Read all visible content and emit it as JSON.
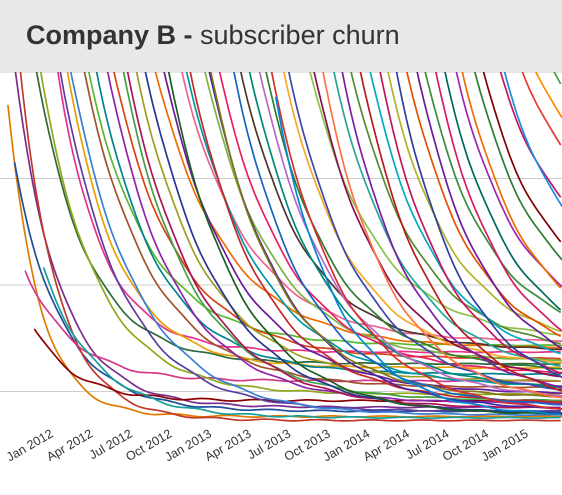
{
  "header": {
    "company": "Company B",
    "separator": " - ",
    "subtitle": "subscriber churn"
  },
  "colors": {
    "header_bg": "#e8e8e8",
    "grid": "#cccccc",
    "text": "#333333"
  },
  "chart_data": {
    "type": "line",
    "title": "Company B - subscriber churn",
    "xlabel": "",
    "ylabel": "",
    "grid": true,
    "legend": "none",
    "x_tick_labels": [
      "Jan 2012",
      "Apr 2012",
      "Jul 2012",
      "Oct 2012",
      "Jan 2013",
      "Apr 2013",
      "Jul 2013",
      "Oct 2013",
      "Jan 2014",
      "Apr 2014",
      "Jul 2014",
      "Oct 2014",
      "Jan 2015"
    ],
    "x_tick_values": [
      0,
      3,
      6,
      9,
      12,
      15,
      18,
      21,
      24,
      27,
      30,
      33,
      36
    ],
    "xlim": [
      -4.1,
      38.5
    ],
    "ylim": [
      0,
      270
    ],
    "series": [
      {
        "color": "#e07b00",
        "start": -3.5,
        "y0": 245,
        "yf": 8,
        "k": 0.42,
        "cliff": []
      },
      {
        "color": "#7b2d8e",
        "start": -3.2,
        "y0": 290,
        "yf": 15,
        "k": 0.3,
        "cliff": []
      },
      {
        "color": "#1f4e9c",
        "start": -3.0,
        "y0": 200,
        "yf": 12,
        "k": 0.28,
        "cliff": []
      },
      {
        "color": "#c0392b",
        "start": -2.6,
        "y0": 275,
        "yf": 5,
        "k": 0.35,
        "cliff": []
      },
      {
        "color": "#d13a8a",
        "start": -2.2,
        "y0": 120,
        "yf": 35,
        "k": 0.28,
        "cliff": []
      },
      {
        "color": "#2f6b3a",
        "start": -1.8,
        "y0": 300,
        "yf": 48,
        "k": 0.26,
        "cliff": []
      },
      {
        "color": "#8b0000",
        "start": -1.5,
        "y0": 75,
        "yf": 20,
        "k": 0.32,
        "cliff": []
      },
      {
        "color": "#8fa81c",
        "start": -1.2,
        "y0": 280,
        "yf": 25,
        "k": 0.24,
        "cliff": []
      },
      {
        "color": "#1a9e9a",
        "start": -0.8,
        "y0": 120,
        "yf": 7,
        "k": 0.25,
        "cliff": []
      },
      {
        "color": "#e5338a",
        "start": -0.4,
        "y0": 320,
        "yf": 57,
        "k": 0.3,
        "cliff": []
      },
      {
        "color": "#5b3fa0",
        "start": 0.0,
        "y0": 300,
        "yf": 12,
        "k": 0.22,
        "cliff": []
      },
      {
        "color": "#e8a000",
        "start": 0.4,
        "y0": 310,
        "yf": 45,
        "k": 0.26,
        "cliff": []
      },
      {
        "color": "#3a7fd5",
        "start": 0.9,
        "y0": 290,
        "yf": 9,
        "k": 0.2,
        "cliff": []
      },
      {
        "color": "#5ab82e",
        "start": 1.3,
        "y0": 340,
        "yf": 62,
        "k": 0.22,
        "cliff": []
      },
      {
        "color": "#a0522d",
        "start": 1.7,
        "y0": 300,
        "yf": 30,
        "k": 0.2,
        "cliff": []
      },
      {
        "color": "#00838f",
        "start": 2.2,
        "y0": 330,
        "yf": 40,
        "k": 0.22,
        "cliff": []
      },
      {
        "color": "#8e24aa",
        "start": 2.7,
        "y0": 350,
        "yf": 18,
        "k": 0.2,
        "cliff": []
      },
      {
        "color": "#d84315",
        "start": 3.2,
        "y0": 340,
        "yf": 52,
        "k": 0.21,
        "cliff": []
      },
      {
        "color": "#43a047",
        "start": 3.7,
        "y0": 360,
        "yf": 20,
        "k": 0.2,
        "cliff": []
      },
      {
        "color": "#ad1457",
        "start": 4.2,
        "y0": 345,
        "yf": 14,
        "k": 0.19,
        "cliff": []
      },
      {
        "color": "#9e9d24",
        "start": 4.8,
        "y0": 350,
        "yf": 35,
        "k": 0.2,
        "cliff": []
      },
      {
        "color": "#283593",
        "start": 5.3,
        "y0": 360,
        "yf": 10,
        "k": 0.18,
        "cliff": []
      },
      {
        "color": "#ef6c00",
        "start": 5.9,
        "y0": 355,
        "yf": 60,
        "k": 0.19,
        "cliff": []
      },
      {
        "color": "#6a1b9a",
        "start": 6.5,
        "y0": 365,
        "yf": 25,
        "k": 0.18,
        "cliff": []
      },
      {
        "color": "#1b5e20",
        "start": 7.1,
        "y0": 360,
        "yf": 9,
        "k": 0.19,
        "cliff": []
      },
      {
        "color": "#f06292",
        "start": 7.7,
        "y0": 370,
        "yf": 65,
        "k": 0.2,
        "cliff": []
      },
      {
        "color": "#0097a7",
        "start": 8.3,
        "y0": 360,
        "yf": 30,
        "k": 0.18,
        "cliff": []
      },
      {
        "color": "#c62828",
        "start": 8.9,
        "y0": 350,
        "yf": 18,
        "k": 0.19,
        "cliff": []
      },
      {
        "color": "#7cb342",
        "start": 9.5,
        "y0": 375,
        "yf": 50,
        "k": 0.2,
        "cliff": []
      },
      {
        "color": "#4527a0",
        "start": 10.1,
        "y0": 360,
        "yf": 12,
        "k": 0.18,
        "cliff": []
      },
      {
        "color": "#e91e63",
        "start": 10.7,
        "y0": 365,
        "yf": 40,
        "k": 0.19,
        "cliff": []
      },
      {
        "color": "#827717",
        "start": 11.3,
        "y0": 300,
        "yf": 22,
        "k": 0.2,
        "cliff": []
      },
      {
        "color": "#1565c0",
        "start": 11.9,
        "y0": 370,
        "yf": 15,
        "k": 0.19,
        "cliff": []
      },
      {
        "color": "#4e342e",
        "start": 12.5,
        "y0": 360,
        "yf": 58,
        "k": 0.21,
        "cliff": []
      },
      {
        "color": "#00897b",
        "start": 13.1,
        "y0": 365,
        "yf": 28,
        "k": 0.19,
        "cliff": []
      },
      {
        "color": "#ba68c8",
        "start": 13.7,
        "y0": 370,
        "yf": 20,
        "k": 0.18,
        "cliff": []
      },
      {
        "color": "#2e7d32",
        "start": 14.3,
        "y0": 365,
        "yf": 42,
        "k": 0.2,
        "cliff": []
      },
      {
        "color": "#d32f2f",
        "start": 14.9,
        "y0": 360,
        "yf": 10,
        "k": 0.19,
        "cliff": []
      },
      {
        "color": "#f9a825",
        "start": 15.5,
        "y0": 375,
        "yf": 46,
        "k": 0.2,
        "cliff": []
      },
      {
        "color": "#3949ab",
        "start": 16.1,
        "y0": 365,
        "yf": 24,
        "k": 0.19,
        "cliff": []
      },
      {
        "color": "#0288d1",
        "start": 16.8,
        "y0": 250,
        "yf": 8,
        "k": 0.22,
        "cliff": []
      },
      {
        "color": "#8bc34a",
        "start": 17.4,
        "y0": 370,
        "yf": 66,
        "k": 0.2,
        "cliff": []
      },
      {
        "color": "#880e4f",
        "start": 18.0,
        "y0": 360,
        "yf": 32,
        "k": 0.19,
        "cliff": []
      },
      {
        "color": "#ff7043",
        "start": 18.7,
        "y0": 370,
        "yf": 16,
        "k": 0.2,
        "cliff": []
      },
      {
        "color": "#26a69a",
        "start": 19.4,
        "y0": 365,
        "yf": 38,
        "k": 0.19,
        "cliff": []
      },
      {
        "color": "#7b1fa2",
        "start": 20.1,
        "y0": 375,
        "yf": 22,
        "k": 0.2,
        "cliff": []
      },
      {
        "color": "#558b2f",
        "start": 20.8,
        "y0": 360,
        "yf": 55,
        "k": 0.2,
        "cliff": []
      },
      {
        "color": "#b71c1c",
        "start": 21.5,
        "y0": 370,
        "yf": 14,
        "k": 0.19,
        "cliff": []
      },
      {
        "color": "#00acc1",
        "start": 22.2,
        "y0": 365,
        "yf": 44,
        "k": 0.2,
        "cliff": []
      },
      {
        "color": "#c2185b",
        "start": 22.9,
        "y0": 375,
        "yf": 26,
        "k": 0.2,
        "cliff": []
      },
      {
        "color": "#afb42b",
        "start": 23.6,
        "y0": 360,
        "yf": 60,
        "k": 0.21,
        "cliff": []
      },
      {
        "color": "#303f9f",
        "start": 24.3,
        "y0": 370,
        "yf": 18,
        "k": 0.2,
        "cliff": []
      },
      {
        "color": "#e65100",
        "start": 25.0,
        "y0": 365,
        "yf": 48,
        "k": 0.2,
        "cliff": []
      },
      {
        "color": "#6a1b9a",
        "start": 25.7,
        "y0": 375,
        "yf": 34,
        "k": 0.2,
        "cliff": []
      },
      {
        "color": "#388e3c",
        "start": 26.4,
        "y0": 360,
        "yf": 64,
        "k": 0.21,
        "cliff": []
      },
      {
        "color": "#d81b60",
        "start": 27.1,
        "y0": 370,
        "yf": 40,
        "k": 0.2,
        "cliff": []
      },
      {
        "color": "#00695c",
        "start": 27.8,
        "y0": 365,
        "yf": 52,
        "k": 0.2,
        "cliff": []
      },
      {
        "color": "#9c27b0",
        "start": 28.5,
        "y0": 375,
        "yf": 70,
        "k": 0.21,
        "cliff": []
      },
      {
        "color": "#ef6c00",
        "start": 29.2,
        "y0": 360,
        "yf": 58,
        "k": 0.2,
        "cliff": []
      },
      {
        "color": "#2e7d32",
        "start": 29.9,
        "y0": 370,
        "yf": 80,
        "k": 0.21,
        "cliff": []
      },
      {
        "color": "#7f0000",
        "start": 30.6,
        "y0": 365,
        "yf": 92,
        "k": 0.22,
        "cliff": []
      },
      {
        "color": "#c2185b",
        "start": 31.4,
        "y0": 375,
        "yf": 120,
        "k": 0.22,
        "cliff": []
      },
      {
        "color": "#1e88e5",
        "start": 32.1,
        "y0": 360,
        "yf": 100,
        "k": 0.21,
        "cliff": []
      },
      {
        "color": "#e53935",
        "start": 32.8,
        "y0": 370,
        "yf": 150,
        "k": 0.22,
        "cliff": []
      },
      {
        "color": "#fb8c00",
        "start": 33.5,
        "y0": 365,
        "yf": 170,
        "k": 0.22,
        "cliff": []
      },
      {
        "color": "#43a047",
        "start": 34.2,
        "y0": 375,
        "yf": 190,
        "k": 0.23,
        "cliff": []
      },
      {
        "color": "#8e24aa",
        "start": 34.9,
        "y0": 360,
        "yf": 210,
        "k": 0.23,
        "cliff": []
      },
      {
        "color": "#a1887f",
        "start": 35.6,
        "y0": 370,
        "yf": 230,
        "k": 0.23,
        "cliff": []
      },
      {
        "color": "#cddc39",
        "start": 36.3,
        "y0": 365,
        "yf": 250,
        "k": 0.24,
        "cliff": []
      }
    ]
  }
}
